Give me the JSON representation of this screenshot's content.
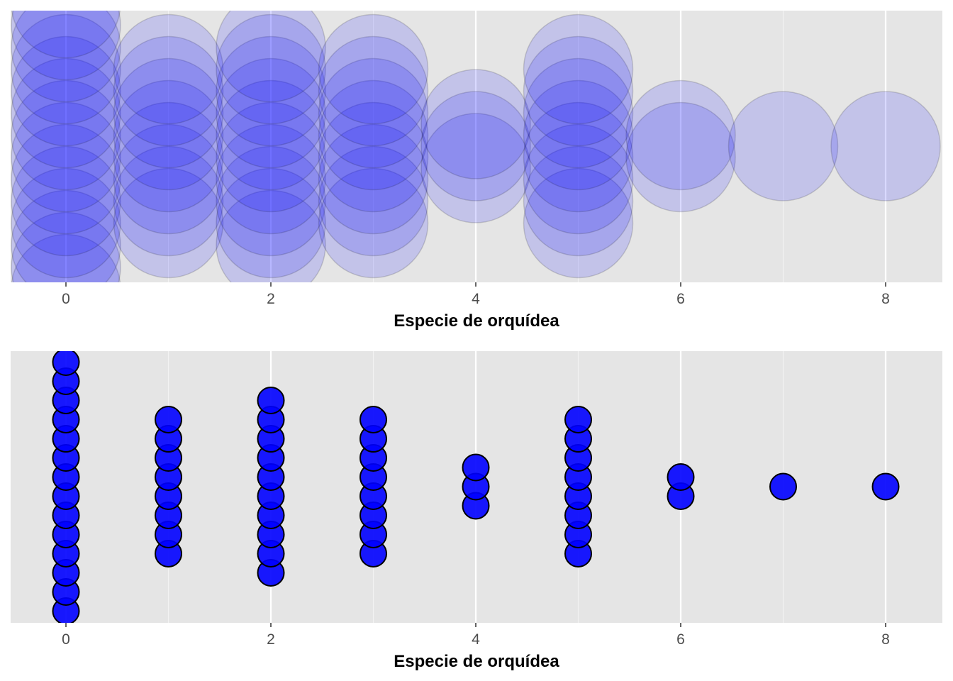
{
  "chart_data": [
    {
      "type": "scatter",
      "variant": "stacked-dotplot-large-translucent",
      "xlabel": "Especie de orquídea",
      "ylabel": "",
      "title": "",
      "xlim": [
        -0.5,
        8.5
      ],
      "x_ticks": [
        0,
        2,
        4,
        6,
        8
      ],
      "grid": "on",
      "legend": "none",
      "counts": [
        {
          "x": 0,
          "count": 14
        },
        {
          "x": 1,
          "count": 8
        },
        {
          "x": 2,
          "count": 10
        },
        {
          "x": 3,
          "count": 8
        },
        {
          "x": 4,
          "count": 3
        },
        {
          "x": 5,
          "count": 8
        },
        {
          "x": 6,
          "count": 2
        },
        {
          "x": 7,
          "count": 1
        },
        {
          "x": 8,
          "count": 1
        }
      ],
      "marker": {
        "fill": "#0000ff",
        "fill_opacity": 0.15,
        "stroke": "#000000",
        "stroke_opacity": 0.15
      }
    },
    {
      "type": "scatter",
      "variant": "stacked-dotplot",
      "xlabel": "Especie de orquídea",
      "ylabel": "",
      "title": "",
      "xlim": [
        -0.5,
        8.5
      ],
      "x_ticks": [
        0,
        2,
        4,
        6,
        8
      ],
      "grid": "on",
      "legend": "none",
      "counts": [
        {
          "x": 0,
          "count": 14
        },
        {
          "x": 1,
          "count": 8
        },
        {
          "x": 2,
          "count": 10
        },
        {
          "x": 3,
          "count": 8
        },
        {
          "x": 4,
          "count": 3
        },
        {
          "x": 5,
          "count": 8
        },
        {
          "x": 6,
          "count": 2
        },
        {
          "x": 7,
          "count": 1
        },
        {
          "x": 8,
          "count": 1
        }
      ],
      "marker": {
        "fill": "#0000ff",
        "fill_opacity": 0.9,
        "stroke": "#000000",
        "stroke_opacity": 1
      }
    }
  ],
  "colors": {
    "panel_background": "#e5e5e5",
    "grid_major": "#ffffff",
    "grid_minor": "#f2f2f2",
    "tick_label": "#4d4d4d"
  }
}
